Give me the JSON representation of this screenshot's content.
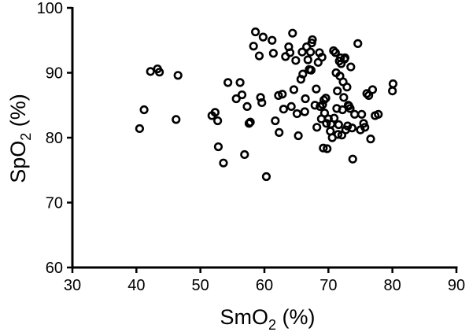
{
  "chart_data": {
    "type": "scatter",
    "title": "",
    "xlabel": {
      "main": "SmO",
      "sub": "2",
      "unit": " (%)"
    },
    "ylabel": {
      "main": "SpO",
      "sub": "2",
      "unit": " (%)"
    },
    "xlim": [
      30,
      90
    ],
    "ylim": [
      60,
      100
    ],
    "xticks": [
      30,
      40,
      50,
      60,
      70,
      80,
      90
    ],
    "yticks": [
      60,
      70,
      80,
      90,
      100
    ],
    "grid": false,
    "series": [
      {
        "marker": "open-circle",
        "color": "#000000",
        "points": [
          [
            40.5,
            81.4
          ],
          [
            41.2,
            84.3
          ],
          [
            42.2,
            90.2
          ],
          [
            43.3,
            90.6
          ],
          [
            43.6,
            90.1
          ],
          [
            46.2,
            82.8
          ],
          [
            46.5,
            89.6
          ],
          [
            51.8,
            83.4
          ],
          [
            52.3,
            83.9
          ],
          [
            52.7,
            82.6
          ],
          [
            52.8,
            78.6
          ],
          [
            53.6,
            76.1
          ],
          [
            54.3,
            88.5
          ],
          [
            55.6,
            86.0
          ],
          [
            56.2,
            88.5
          ],
          [
            56.5,
            86.6
          ],
          [
            56.9,
            77.4
          ],
          [
            57.3,
            84.8
          ],
          [
            57.6,
            82.2
          ],
          [
            57.8,
            82.4
          ],
          [
            58.3,
            94.1
          ],
          [
            58.6,
            96.3
          ],
          [
            59.2,
            92.6
          ],
          [
            59.4,
            86.2
          ],
          [
            59.6,
            85.4
          ],
          [
            59.8,
            95.5
          ],
          [
            60.3,
            74.0
          ],
          [
            61.2,
            95.0
          ],
          [
            61.4,
            93.0
          ],
          [
            61.7,
            82.6
          ],
          [
            62.2,
            86.5
          ],
          [
            62.3,
            80.8
          ],
          [
            62.8,
            86.7
          ],
          [
            63.0,
            84.4
          ],
          [
            63.3,
            92.5
          ],
          [
            63.8,
            94.0
          ],
          [
            64.0,
            93.1
          ],
          [
            64.2,
            84.8
          ],
          [
            64.4,
            96.1
          ],
          [
            64.6,
            87.4
          ],
          [
            64.9,
            91.9
          ],
          [
            65.1,
            83.7
          ],
          [
            65.3,
            80.3
          ],
          [
            65.7,
            89.0
          ],
          [
            65.9,
            93.2
          ],
          [
            66.0,
            89.8
          ],
          [
            66.3,
            84.0
          ],
          [
            66.4,
            86.0
          ],
          [
            66.6,
            94.0
          ],
          [
            66.8,
            92.0
          ],
          [
            67.0,
            90.5
          ],
          [
            67.2,
            93.2
          ],
          [
            67.3,
            90.4
          ],
          [
            67.4,
            94.6
          ],
          [
            67.5,
            95.1
          ],
          [
            67.9,
            85.0
          ],
          [
            68.1,
            87.5
          ],
          [
            68.2,
            81.6
          ],
          [
            68.4,
            91.6
          ],
          [
            68.6,
            93.1
          ],
          [
            68.7,
            84.8
          ],
          [
            68.9,
            82.9
          ],
          [
            69.0,
            92.4
          ],
          [
            69.1,
            85.1
          ],
          [
            69.2,
            78.4
          ],
          [
            69.3,
            85.8
          ],
          [
            69.4,
            83.8
          ],
          [
            69.6,
            86.1
          ],
          [
            69.7,
            82.2
          ],
          [
            69.8,
            78.3
          ],
          [
            70.0,
            82.9
          ],
          [
            70.3,
            81.0
          ],
          [
            70.4,
            82.1
          ],
          [
            70.6,
            80.0
          ],
          [
            70.8,
            93.4
          ],
          [
            70.9,
            83.0
          ],
          [
            71.1,
            93.1
          ],
          [
            71.2,
            90.0
          ],
          [
            71.3,
            84.5
          ],
          [
            71.4,
            87.2
          ],
          [
            71.5,
            80.5
          ],
          [
            71.6,
            82.0
          ],
          [
            71.7,
            91.8
          ],
          [
            71.8,
            89.5
          ],
          [
            71.9,
            92.3
          ],
          [
            72.0,
            91.4
          ],
          [
            72.1,
            80.4
          ],
          [
            72.2,
            84.3
          ],
          [
            72.3,
            88.6
          ],
          [
            72.4,
            86.2
          ],
          [
            72.5,
            92.1
          ],
          [
            72.6,
            92.3
          ],
          [
            72.7,
            81.2
          ],
          [
            72.9,
            87.8
          ],
          [
            73.0,
            81.8
          ],
          [
            73.1,
            85.0
          ],
          [
            73.2,
            84.9
          ],
          [
            73.4,
            84.5
          ],
          [
            73.5,
            90.9
          ],
          [
            73.7,
            81.5
          ],
          [
            73.8,
            76.7
          ],
          [
            74.1,
            83.6
          ],
          [
            74.6,
            94.5
          ],
          [
            75.0,
            81.2
          ],
          [
            75.2,
            83.6
          ],
          [
            75.5,
            82.2
          ],
          [
            75.7,
            81.6
          ],
          [
            76.0,
            86.8
          ],
          [
            76.3,
            86.5
          ],
          [
            76.6,
            79.8
          ],
          [
            76.9,
            87.4
          ],
          [
            77.3,
            83.4
          ],
          [
            77.8,
            83.6
          ],
          [
            80.0,
            87.2
          ],
          [
            80.1,
            88.3
          ]
        ]
      }
    ]
  }
}
